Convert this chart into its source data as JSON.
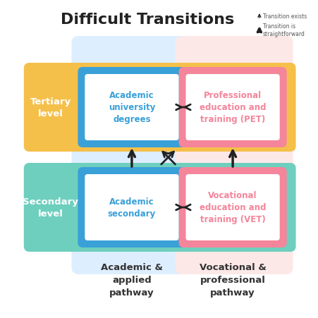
{
  "title": "Difficult Transitions",
  "title_fontsize": 16,
  "bg_color": "#ffffff",
  "colors": {
    "blue_bg": "#ddeeff",
    "pink_bg": "#fde8e8",
    "blue_box": "#3aa0d8",
    "pink_box": "#f4859a",
    "orange_band": "#f5c04a",
    "teal_band": "#6ecfbe",
    "white_inner": "#ffffff",
    "blue_text": "#3aa0d8",
    "pink_text": "#f4859a",
    "label_text": "#333333",
    "arrow_color": "#222222"
  },
  "boxes": {
    "academic_tertiary": {
      "label": "Academic\nuniversity\ndegrees"
    },
    "pet": {
      "label": "Professional\neducation and\ntraining (PET)"
    },
    "academic_secondary": {
      "label": "Academic\nsecondary"
    },
    "vet": {
      "label": "Vocational\neducation and\ntraining (VET)"
    }
  },
  "level_labels": {
    "tertiary": "Tertiary\nlevel",
    "secondary": "Secondary\nlevel"
  },
  "pathway_labels": {
    "academic": "Academic &\napplied\npathway",
    "vocational": "Vocational &\nprofessional\npathway"
  },
  "legend": {
    "thin_arrow": "Transition exists",
    "thick_arrow": "Transition is\nstraightforward"
  }
}
